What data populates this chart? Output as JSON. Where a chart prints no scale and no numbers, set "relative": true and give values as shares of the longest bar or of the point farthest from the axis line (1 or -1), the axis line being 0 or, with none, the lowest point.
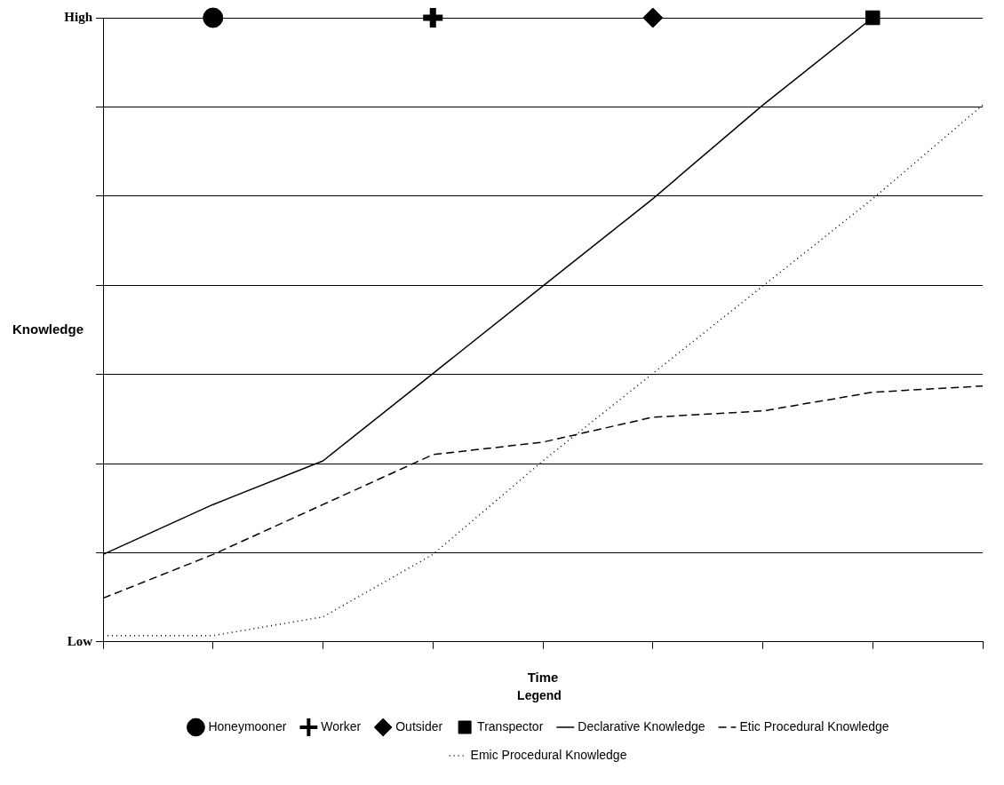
{
  "chart_data": {
    "type": "line",
    "xlabel": "Time",
    "ylabel": "Knowledge",
    "legend_title": "Legend",
    "legend": "bottom",
    "grid": "y",
    "categories": [
      null,
      null,
      null,
      null,
      null,
      null,
      null,
      null,
      null
    ],
    "relative": true,
    "annotations": [
      "High",
      "Low"
    ],
    "series": [
      {
        "name": "Honeymooner",
        "line_style": "none",
        "marker": "circle",
        "color": "#000000",
        "values": [
          null,
          1,
          null,
          null,
          null,
          null,
          null,
          null,
          null
        ]
      },
      {
        "name": "Worker",
        "line_style": "none",
        "marker": "cross",
        "color": "#000000",
        "values": [
          null,
          null,
          null,
          1,
          null,
          null,
          null,
          null,
          null
        ]
      },
      {
        "name": "Outsider",
        "line_style": "none",
        "marker": "diamond",
        "color": "#000000",
        "values": [
          null,
          null,
          null,
          null,
          null,
          1,
          null,
          null,
          null
        ]
      },
      {
        "name": "Transpector",
        "line_style": "none",
        "marker": "square",
        "color": "#000000",
        "values": [
          null,
          null,
          null,
          null,
          null,
          null,
          null,
          1,
          null
        ]
      },
      {
        "name": "Declarative Knowledge",
        "line_style": "solid",
        "color": "#000000",
        "values": [
          0.14,
          0.22,
          0.29,
          0.43,
          0.57,
          0.71,
          0.86,
          1,
          null
        ]
      },
      {
        "name": "Etic Procedural Knowledge",
        "line_style": "dashed",
        "color": "#000000",
        "values": [
          0.07,
          0.14,
          0.22,
          0.3,
          0.32,
          0.36,
          0.37,
          0.4,
          0.41
        ]
      },
      {
        "name": "Emic Procedural Knowledge",
        "line_style": "dotted",
        "color": "#000000",
        "values": [
          0.01,
          0.01,
          0.04,
          0.14,
          0.29,
          0.43,
          0.57,
          0.71,
          0.86
        ]
      }
    ]
  }
}
